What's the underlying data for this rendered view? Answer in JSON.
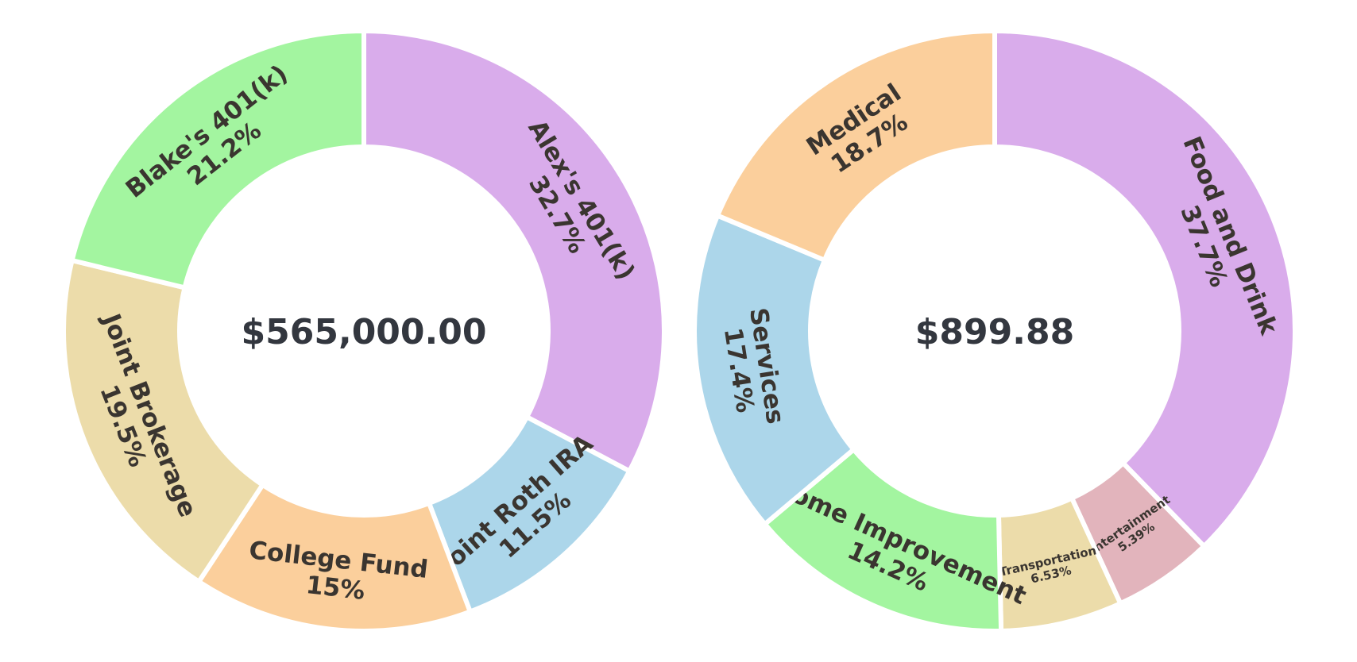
{
  "chart_data": [
    {
      "type": "pie",
      "total_label": "$565,000.00",
      "start": "top",
      "direction": "clockwise",
      "slices": [
        {
          "name": "Alex's 401(k)",
          "percent_label": "32.7%",
          "value": 32.7,
          "color": "#d9aceb"
        },
        {
          "name": "Joint Roth IRA",
          "percent_label": "11.5%",
          "value": 11.5,
          "color": "#acd6ea"
        },
        {
          "name": "College Fund",
          "percent_label": "15%",
          "value": 15.0,
          "color": "#fbcf9c"
        },
        {
          "name": "Joint Brokerage",
          "percent_label": "19.5%",
          "value": 19.5,
          "color": "#ecdcaa"
        },
        {
          "name": "Blake's 401(k)",
          "percent_label": "21.2%",
          "value": 21.2,
          "color": "#a3f5a0"
        }
      ]
    },
    {
      "type": "pie",
      "total_label": "$899.88",
      "start": "top",
      "direction": "clockwise",
      "slices": [
        {
          "name": "Food and Drink",
          "percent_label": "37.7%",
          "value": 37.7,
          "color": "#d9aceb"
        },
        {
          "name": "Entertainment",
          "percent_label": "5.39%",
          "value": 5.39,
          "color": "#e2b4bc"
        },
        {
          "name": "Transportation",
          "percent_label": "6.53%",
          "value": 6.53,
          "color": "#ecdcaa"
        },
        {
          "name": "Home Improvement",
          "percent_label": "14.2%",
          "value": 14.2,
          "color": "#a3f5a0"
        },
        {
          "name": "Services",
          "percent_label": "17.4%",
          "value": 17.4,
          "color": "#acd6ea"
        },
        {
          "name": "Medical",
          "percent_label": "18.7%",
          "value": 18.7,
          "color": "#fbcf9c"
        }
      ]
    }
  ]
}
